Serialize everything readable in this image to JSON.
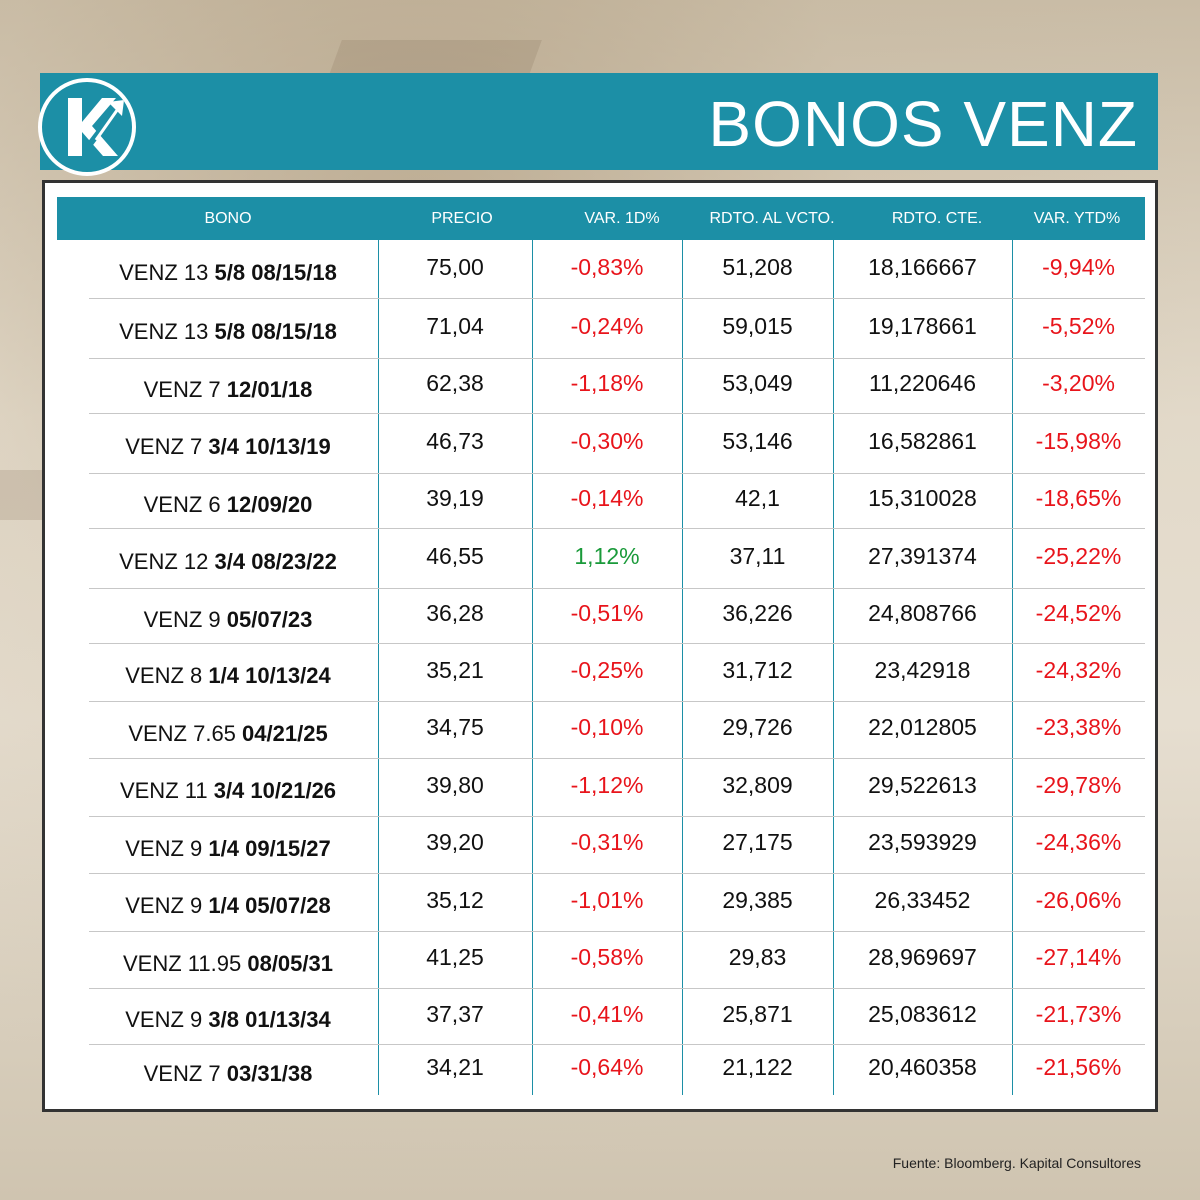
{
  "header": {
    "title": "BONOS VENZ",
    "logo_icon": "kapital-k-arrow-icon"
  },
  "table": {
    "columns": [
      "BONO",
      "PRECIO",
      "VAR. 1D%",
      "RDTO. AL VCTO.",
      "RDTO. CTE.",
      "VAR. YTD%"
    ],
    "rows": [
      {
        "bono_prefix": "VENZ 13",
        "bono_bold": "5/8 08/15/18",
        "precio": "75,00",
        "var1d": "-0,83%",
        "var1d_dir": "neg",
        "rdto_vcto": "51,208",
        "rdto_cte": "18,166667",
        "var_ytd": "-9,94%"
      },
      {
        "bono_prefix": "VENZ 13",
        "bono_bold": "5/8 08/15/18",
        "precio": "71,04",
        "var1d": "-0,24%",
        "var1d_dir": "neg",
        "rdto_vcto": "59,015",
        "rdto_cte": "19,178661",
        "var_ytd": "-5,52%"
      },
      {
        "bono_prefix": "VENZ 7",
        "bono_bold": "12/01/18",
        "precio": "62,38",
        "var1d": "-1,18%",
        "var1d_dir": "neg",
        "rdto_vcto": "53,049",
        "rdto_cte": "11,220646",
        "var_ytd": "-3,20%"
      },
      {
        "bono_prefix": "VENZ 7",
        "bono_bold": "3/4 10/13/19",
        "precio": "46,73",
        "var1d": "-0,30%",
        "var1d_dir": "neg",
        "rdto_vcto": "53,146",
        "rdto_cte": "16,582861",
        "var_ytd": "-15,98%"
      },
      {
        "bono_prefix": "VENZ 6",
        "bono_bold": "12/09/20",
        "precio": "39,19",
        "var1d": "-0,14%",
        "var1d_dir": "neg",
        "rdto_vcto": "42,1",
        "rdto_cte": "15,310028",
        "var_ytd": "-18,65%"
      },
      {
        "bono_prefix": "VENZ 12",
        "bono_bold": "3/4 08/23/22",
        "precio": "46,55",
        "var1d": "1,12%",
        "var1d_dir": "pos",
        "rdto_vcto": "37,11",
        "rdto_cte": "27,391374",
        "var_ytd": "-25,22%"
      },
      {
        "bono_prefix": "VENZ 9",
        "bono_bold": "05/07/23",
        "precio": "36,28",
        "var1d": "-0,51%",
        "var1d_dir": "neg",
        "rdto_vcto": "36,226",
        "rdto_cte": "24,808766",
        "var_ytd": "-24,52%"
      },
      {
        "bono_prefix": "VENZ 8",
        "bono_bold": "1/4 10/13/24",
        "precio": "35,21",
        "var1d": "-0,25%",
        "var1d_dir": "neg",
        "rdto_vcto": "31,712",
        "rdto_cte": "23,42918",
        "var_ytd": "-24,32%"
      },
      {
        "bono_prefix": "VENZ 7.65",
        "bono_bold": "04/21/25",
        "precio": "34,75",
        "var1d": "-0,10%",
        "var1d_dir": "neg",
        "rdto_vcto": "29,726",
        "rdto_cte": "22,012805",
        "var_ytd": "-23,38%"
      },
      {
        "bono_prefix": "VENZ 11",
        "bono_bold": "3/4 10/21/26",
        "precio": "39,80",
        "var1d": "-1,12%",
        "var1d_dir": "neg",
        "rdto_vcto": "32,809",
        "rdto_cte": "29,522613",
        "var_ytd": "-29,78%"
      },
      {
        "bono_prefix": "VENZ 9",
        "bono_bold": "1/4 09/15/27",
        "precio": "39,20",
        "var1d": "-0,31%",
        "var1d_dir": "neg",
        "rdto_vcto": "27,175",
        "rdto_cte": "23,593929",
        "var_ytd": "-24,36%"
      },
      {
        "bono_prefix": "VENZ 9",
        "bono_bold": "1/4 05/07/28",
        "precio": "35,12",
        "var1d": "-1,01%",
        "var1d_dir": "neg",
        "rdto_vcto": "29,385",
        "rdto_cte": "26,33452",
        "var_ytd": "-26,06%"
      },
      {
        "bono_prefix": "VENZ 11.95",
        "bono_bold": "08/05/31",
        "precio": "41,25",
        "var1d": "-0,58%",
        "var1d_dir": "neg",
        "rdto_vcto": "29,83",
        "rdto_cte": "28,969697",
        "var_ytd": "-27,14%"
      },
      {
        "bono_prefix": "VENZ 9",
        "bono_bold": "3/8 01/13/34",
        "precio": "37,37",
        "var1d": "-0,41%",
        "var1d_dir": "neg",
        "rdto_vcto": "25,871",
        "rdto_cte": "25,083612",
        "var_ytd": "-21,73%"
      },
      {
        "bono_prefix": "VENZ 7",
        "bono_bold": "03/31/38",
        "precio": "34,21",
        "var1d": "-0,64%",
        "var1d_dir": "neg",
        "rdto_vcto": "21,122",
        "rdto_cte": "20,460358",
        "var_ytd": "-21,56%"
      }
    ]
  },
  "footer": {
    "source": "Fuente: Bloomberg. Kapital Consultores"
  },
  "colors": {
    "brand_teal": "#1c8fa6",
    "negative": "#e8141b",
    "positive": "#1a9a3a"
  }
}
